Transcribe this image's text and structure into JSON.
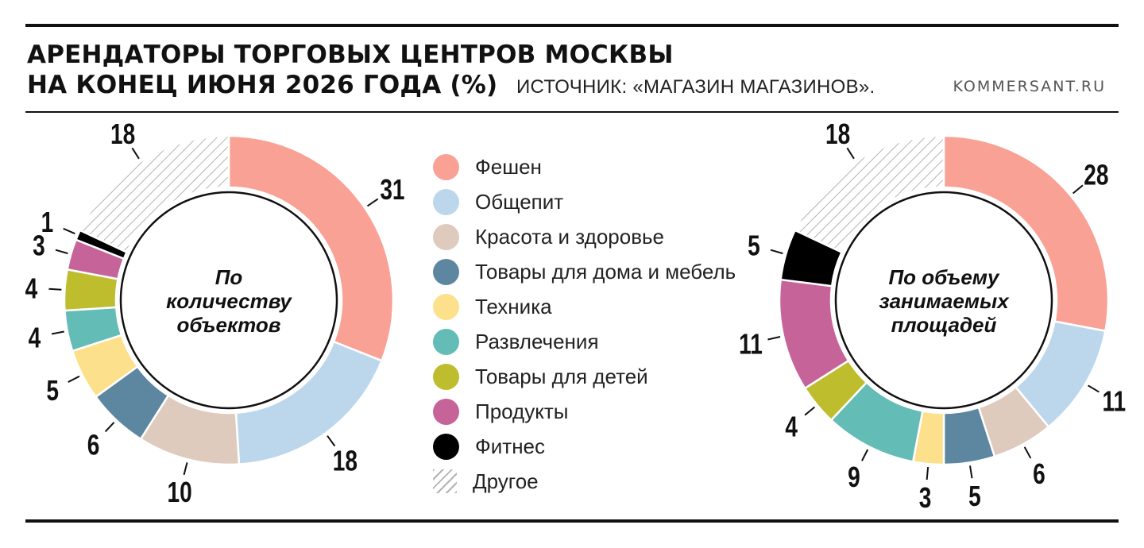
{
  "header": {
    "title_line1": "АРЕНДАТОРЫ ТОРГОВЫХ ЦЕНТРОВ МОСКВЫ",
    "title_line2": "НА КОНЕЦ ИЮНЯ 2026 ГОДА (%)",
    "source": "ИСТОЧНИК: «МАГАЗИН МАГАЗИНОВ».",
    "site": "KOMMERSANT.RU"
  },
  "legend": [
    {
      "label": "Фешен",
      "color": "#f9a195"
    },
    {
      "label": "Общепит",
      "color": "#bcd7ec"
    },
    {
      "label": "Красота и здоровье",
      "color": "#dfcbbd"
    },
    {
      "label": "Товары для дома и мебель",
      "color": "#5d87a1"
    },
    {
      "label": "Техника",
      "color": "#fde08b"
    },
    {
      "label": "Развлечения",
      "color": "#63bcb6"
    },
    {
      "label": "Товары для детей",
      "color": "#bdbd2e"
    },
    {
      "label": "Продукты",
      "color": "#c6649a"
    },
    {
      "label": "Фитнес",
      "color": "#000000"
    },
    {
      "label": "Другое",
      "color": "hatch"
    }
  ],
  "chart_data": [
    {
      "type": "pie",
      "title": "По количеству объектов",
      "title_lines": [
        "По",
        "количеству",
        "объектов"
      ],
      "categories": [
        "Фешен",
        "Общепит",
        "Красота и здоровье",
        "Товары для дома и мебель",
        "Техника",
        "Развлечения",
        "Товары для детей",
        "Продукты",
        "Фитнес",
        "Другое"
      ],
      "values": [
        31,
        18,
        10,
        6,
        5,
        4,
        4,
        3,
        1,
        18
      ]
    },
    {
      "type": "pie",
      "title": "По объему занимаемых площадей",
      "title_lines": [
        "По объему",
        "занимаемых",
        "площадей"
      ],
      "categories": [
        "Фешен",
        "Общепит",
        "Красота и здоровье",
        "Товары для дома и мебель",
        "Техника",
        "Развлечения",
        "Товары для детей",
        "Продукты",
        "Фитнес",
        "Другое"
      ],
      "values": [
        28,
        11,
        6,
        5,
        3,
        9,
        4,
        11,
        5,
        18
      ]
    }
  ]
}
